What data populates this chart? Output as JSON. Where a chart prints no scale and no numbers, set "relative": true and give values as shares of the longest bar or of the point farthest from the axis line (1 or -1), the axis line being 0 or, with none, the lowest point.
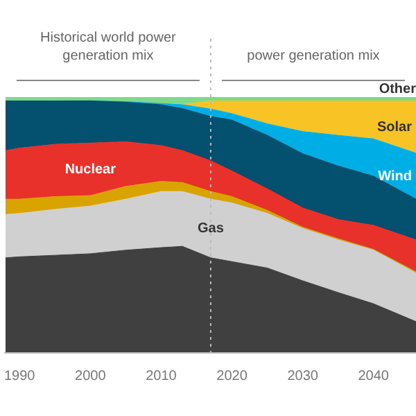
{
  "chart_data": {
    "type": "area",
    "stacked": true,
    "relative": true,
    "legend": false,
    "grid": false,
    "x": [
      1988,
      1990,
      1995,
      2000,
      2005,
      2010,
      2013,
      2017,
      2020,
      2025,
      2030,
      2035,
      2040,
      2046
    ],
    "xlim": [
      1988,
      2046
    ],
    "xticks": [
      1990,
      2000,
      2010,
      2020,
      2030,
      2040
    ],
    "annotations": [
      "Historical world power generation mix",
      "power generation mix"
    ],
    "ref_lines": [
      {
        "axis": "x",
        "value": 2017,
        "color": "#bbbbbb",
        "line_style": "dotted"
      }
    ],
    "series": [
      {
        "color": "#404040",
        "values": [
          0.37,
          0.374,
          0.38,
          0.386,
          0.4,
          0.41,
          0.415,
          0.37,
          0.355,
          0.33,
          0.28,
          0.234,
          0.19,
          0.12
        ]
      },
      {
        "name": "Gas",
        "color": "#d0d0d0",
        "values": [
          0.17,
          0.17,
          0.18,
          0.187,
          0.2,
          0.22,
          0.215,
          0.23,
          0.23,
          0.214,
          0.205,
          0.206,
          0.21,
          0.19
        ]
      },
      {
        "color": "#d9a300",
        "values": [
          0.06,
          0.056,
          0.05,
          0.041,
          0.05,
          0.04,
          0.035,
          0.03,
          0.025,
          0.012,
          0.005,
          0.005,
          0.003,
          0.005
        ]
      },
      {
        "name": "Nuclear",
        "color": "#e8312a",
        "values": [
          0.19,
          0.2,
          0.205,
          0.206,
          0.175,
          0.14,
          0.125,
          0.12,
          0.1,
          0.084,
          0.075,
          0.075,
          0.094,
          0.125
        ]
      },
      {
        "color": "#03506f",
        "values": [
          0.195,
          0.185,
          0.17,
          0.165,
          0.155,
          0.16,
          0.165,
          0.174,
          0.2,
          0.21,
          0.213,
          0.21,
          0.193,
          0.16
        ]
      },
      {
        "name": "Wind",
        "color": "#00aee6",
        "values": [
          0,
          0,
          0,
          0.001,
          0.002,
          0.005,
          0.015,
          0.029,
          0.025,
          0.045,
          0.087,
          0.12,
          0.146,
          0.18
        ]
      },
      {
        "name": "Solar",
        "color": "#f7c325",
        "values": [
          0,
          0,
          0,
          0,
          0,
          0.001,
          0.002,
          0.032,
          0.05,
          0.09,
          0.12,
          0.135,
          0.149,
          0.205
        ]
      },
      {
        "name": "Other",
        "color": "#7ed98a",
        "values": [
          0.015,
          0.015,
          0.015,
          0.014,
          0.018,
          0.024,
          0.028,
          0.015,
          0.015,
          0.015,
          0.015,
          0.015,
          0.015,
          0.015
        ]
      }
    ]
  }
}
